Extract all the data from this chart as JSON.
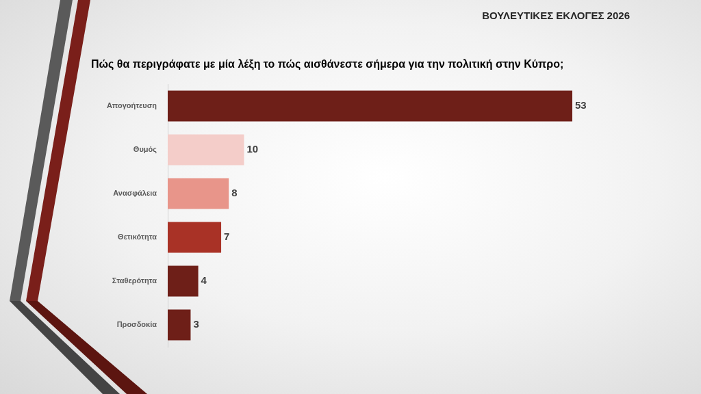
{
  "chart_data": {
    "type": "bar",
    "orientation": "horizontal",
    "title": "ΒΟΥΛΕΥΤΙΚΕΣ ΕΚΛΟΓΕΣ 2026",
    "subtitle": "Πώς θα περιγράφατε με μία λέξη το πώς αισθάνεστε σήμερα για την πολιτική στην Κύπρο;",
    "categories": [
      "Απογοήτευση",
      "Θυμός",
      "Ανασφάλεια",
      "Θετικότητα",
      "Σταθερότητα",
      "Προσδοκία"
    ],
    "values": [
      53,
      10,
      8,
      7,
      4,
      3
    ],
    "colors": [
      "#6e1f18",
      "#f4cdc9",
      "#e8958a",
      "#a93226",
      "#6e1f18",
      "#6e1f18"
    ],
    "tick_labels": "y",
    "data_labels": true,
    "grid": false,
    "legend": false
  }
}
